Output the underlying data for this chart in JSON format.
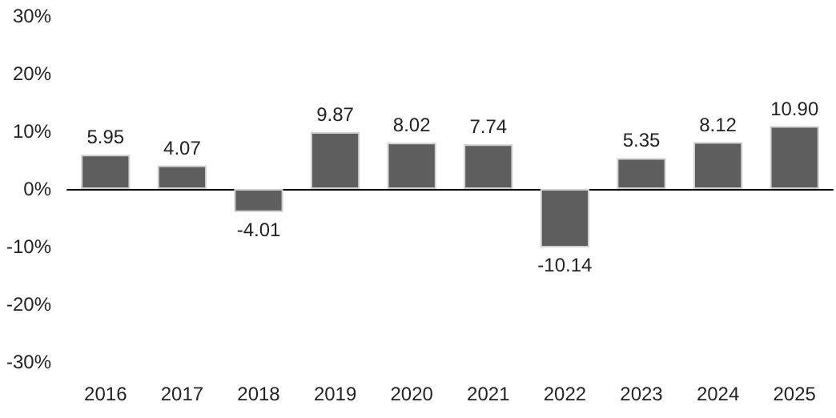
{
  "chart_data": {
    "type": "bar",
    "categories": [
      "2016",
      "2017",
      "2018",
      "2019",
      "2020",
      "2021",
      "2022",
      "2023",
      "2024",
      "2025"
    ],
    "values": [
      5.95,
      4.07,
      -4.01,
      9.87,
      8.02,
      7.74,
      -10.14,
      5.35,
      8.12,
      10.9
    ],
    "value_labels": [
      "5.95",
      "4.07",
      "-4.01",
      "9.87",
      "8.02",
      "7.74",
      "-10.14",
      "5.35",
      "8.12",
      "10.90"
    ],
    "color": "#5e5e5e",
    "ylim": [
      -30,
      30
    ],
    "yticks": [
      {
        "value": -30,
        "label": "-30%"
      },
      {
        "value": -20,
        "label": "-20%"
      },
      {
        "value": -10,
        "label": "-10%"
      },
      {
        "value": 0,
        "label": "0%"
      },
      {
        "value": 10,
        "label": "10%"
      },
      {
        "value": 20,
        "label": "20%"
      },
      {
        "value": 30,
        "label": "30%"
      }
    ]
  }
}
